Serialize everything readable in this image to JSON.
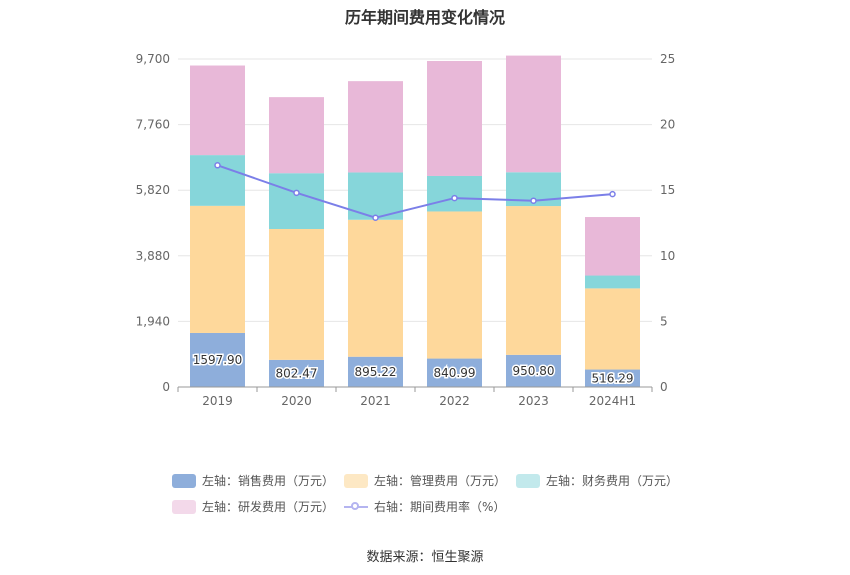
{
  "chart_data": {
    "type": "bar",
    "title": "历年期间费用变化情况",
    "categories": [
      "2019",
      "2020",
      "2021",
      "2022",
      "2023",
      "2024H1"
    ],
    "left_axis": {
      "ylim": [
        0,
        9700
      ],
      "ticks": [
        "0",
        "1,940",
        "3,880",
        "5,820",
        "7,760",
        "9,700"
      ],
      "tick_values": [
        0,
        1940,
        3880,
        5820,
        7760,
        9700
      ]
    },
    "right_axis": {
      "ylim": [
        0,
        25
      ],
      "ticks": [
        "0",
        "5",
        "10",
        "15",
        "20",
        "25"
      ],
      "tick_values": [
        0,
        5,
        10,
        15,
        20,
        25
      ]
    },
    "series": [
      {
        "name": "左轴：销售费用（万元）",
        "color": "#8eaedb",
        "values": [
          1597.9,
          802.47,
          895.22,
          840.99,
          950.8,
          516.29
        ],
        "labels": [
          "1597.90",
          "802.47",
          "895.22",
          "840.99",
          "950.80",
          "516.29"
        ]
      },
      {
        "name": "左轴：管理费用（万元）",
        "color": "#fed89b",
        "values": [
          3760,
          3870,
          4050,
          4350,
          4400,
          2400
        ]
      },
      {
        "name": "左轴：财务费用（万元）",
        "color": "#86d6da",
        "values": [
          1500,
          1650,
          1400,
          1050,
          1000,
          380
        ]
      },
      {
        "name": "左轴：研发费用（万元）",
        "color": "#e8b8d8",
        "values": [
          2650,
          2250,
          2700,
          3400,
          3450,
          1730
        ]
      }
    ],
    "line_series": {
      "name": "右轴：期间费用率（%）",
      "color": "#7b7fe8",
      "values": [
        16.9,
        14.8,
        12.9,
        14.4,
        14.2,
        14.7
      ]
    },
    "legend_swatches": [
      "#8eaedb",
      "#fde8c4",
      "#c2e9ec",
      "#f3d9ea"
    ]
  },
  "source": "数据来源：恒生聚源"
}
